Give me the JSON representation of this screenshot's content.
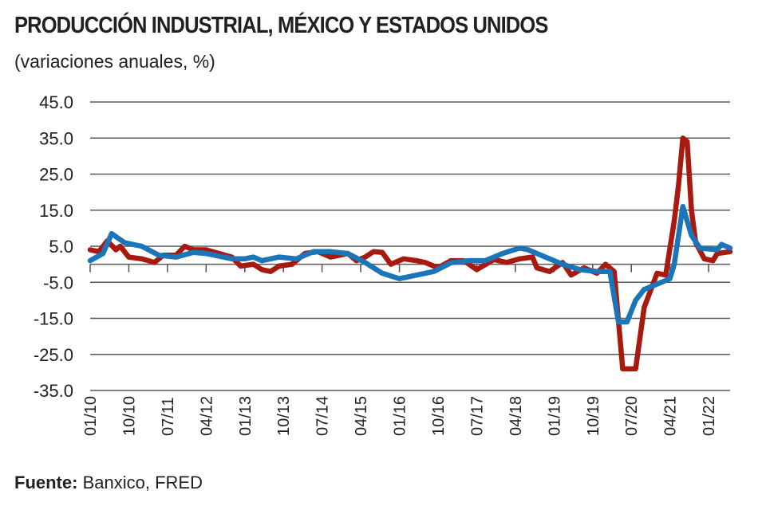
{
  "chart_data": {
    "type": "line",
    "title": "PRODUCCIÓN INDUSTRIAL, MÉXICO Y ESTADOS UNIDOS",
    "subtitle": "(variaciones anuales, %)",
    "xlabel": "",
    "ylabel": "",
    "ylim": [
      -35,
      45
    ],
    "xlim": [
      "2010-01",
      "2022-06"
    ],
    "grid": true,
    "yticks": [
      "45.0",
      "35.0",
      "25.0",
      "15.0",
      "5.0",
      "-5.0",
      "-15.0",
      "-25.0",
      "-35.0"
    ],
    "ytick_values": [
      45,
      35,
      25,
      15,
      5,
      -5,
      -15,
      -25,
      -35
    ],
    "xticks": [
      "01/10",
      "10/10",
      "07/11",
      "04/12",
      "01/13",
      "10/13",
      "07/14",
      "04/15",
      "01/16",
      "10/16",
      "07/17",
      "04/18",
      "01/19",
      "10/19",
      "07/20",
      "04/21",
      "01/22"
    ],
    "source_label": "Fuente:",
    "source_text": "Banxico, FRED",
    "series": [
      {
        "color": "#a8190f",
        "points": [
          [
            "2010-01",
            4
          ],
          [
            "2010-03",
            3.5
          ],
          [
            "2010-05",
            6.5
          ],
          [
            "2010-07",
            4
          ],
          [
            "2010-08",
            5
          ],
          [
            "2010-10",
            2
          ],
          [
            "2011-01",
            1.5
          ],
          [
            "2011-04",
            0.5
          ],
          [
            "2011-06",
            2.5
          ],
          [
            "2011-09",
            2.5
          ],
          [
            "2011-11",
            5
          ],
          [
            "2012-01",
            4
          ],
          [
            "2012-04",
            4
          ],
          [
            "2012-07",
            3
          ],
          [
            "2012-10",
            2
          ],
          [
            "2012-12",
            -0.5
          ],
          [
            "2013-03",
            0
          ],
          [
            "2013-05",
            -1.5
          ],
          [
            "2013-07",
            -2
          ],
          [
            "2013-09",
            -0.5
          ],
          [
            "2013-12",
            0
          ],
          [
            "2014-03",
            3
          ],
          [
            "2014-06",
            3.5
          ],
          [
            "2014-09",
            2
          ],
          [
            "2015-01",
            3
          ],
          [
            "2015-03",
            1
          ],
          [
            "2015-05",
            2
          ],
          [
            "2015-07",
            3.5
          ],
          [
            "2015-09",
            3.3
          ],
          [
            "2015-11",
            0
          ],
          [
            "2016-02",
            1.5
          ],
          [
            "2016-05",
            1
          ],
          [
            "2016-07",
            0.5
          ],
          [
            "2016-10",
            -1
          ],
          [
            "2017-01",
            1
          ],
          [
            "2017-04",
            1
          ],
          [
            "2017-07",
            -1.5
          ],
          [
            "2017-11",
            1.3
          ],
          [
            "2018-02",
            0.5
          ],
          [
            "2018-05",
            1.5
          ],
          [
            "2018-08",
            2
          ],
          [
            "2018-09",
            -1
          ],
          [
            "2018-12",
            -2
          ],
          [
            "2019-03",
            0.5
          ],
          [
            "2019-05",
            -3
          ],
          [
            "2019-08",
            -1
          ],
          [
            "2019-11",
            -2.5
          ],
          [
            "2020-01",
            0
          ],
          [
            "2020-03",
            -2
          ],
          [
            "2020-05",
            -29
          ],
          [
            "2020-08",
            -29
          ],
          [
            "2020-10",
            -12
          ],
          [
            "2021-01",
            -2.5
          ],
          [
            "2021-03",
            -3
          ],
          [
            "2021-05",
            12
          ],
          [
            "2021-06",
            22
          ],
          [
            "2021-07",
            35
          ],
          [
            "2021-08",
            34
          ],
          [
            "2021-09",
            15
          ],
          [
            "2021-10",
            6
          ],
          [
            "2021-12",
            1.5
          ],
          [
            "2022-02",
            1
          ],
          [
            "2022-03",
            3
          ],
          [
            "2022-06",
            3.5
          ]
        ]
      },
      {
        "color": "#1c75b9",
        "points": [
          [
            "2010-01",
            1
          ],
          [
            "2010-04",
            3
          ],
          [
            "2010-06",
            8.5
          ],
          [
            "2010-09",
            6
          ],
          [
            "2011-01",
            5
          ],
          [
            "2011-05",
            2.5
          ],
          [
            "2011-09",
            2
          ],
          [
            "2012-01",
            3.3
          ],
          [
            "2012-04",
            3
          ],
          [
            "2012-10",
            1.5
          ],
          [
            "2013-01",
            1.5
          ],
          [
            "2013-03",
            2
          ],
          [
            "2013-05",
            1
          ],
          [
            "2013-09",
            2
          ],
          [
            "2014-01",
            1.5
          ],
          [
            "2014-05",
            3.5
          ],
          [
            "2014-09",
            3.5
          ],
          [
            "2015-01",
            3
          ],
          [
            "2015-05",
            0.5
          ],
          [
            "2015-09",
            -2.5
          ],
          [
            "2016-01",
            -4
          ],
          [
            "2016-05",
            -3
          ],
          [
            "2016-09",
            -2
          ],
          [
            "2017-01",
            0.4
          ],
          [
            "2017-05",
            1
          ],
          [
            "2017-09",
            1
          ],
          [
            "2018-01",
            3
          ],
          [
            "2018-05",
            4.5
          ],
          [
            "2018-07",
            4
          ],
          [
            "2018-11",
            2
          ],
          [
            "2019-03",
            0
          ],
          [
            "2019-07",
            -1.5
          ],
          [
            "2019-11",
            -2
          ],
          [
            "2020-02",
            -2
          ],
          [
            "2020-04",
            -16
          ],
          [
            "2020-06",
            -16
          ],
          [
            "2020-08",
            -10
          ],
          [
            "2020-10",
            -7
          ],
          [
            "2021-02",
            -5
          ],
          [
            "2021-04",
            -4
          ],
          [
            "2021-05",
            0
          ],
          [
            "2021-07",
            16
          ],
          [
            "2021-09",
            8
          ],
          [
            "2021-11",
            4.5
          ],
          [
            "2022-03",
            4
          ],
          [
            "2022-04",
            5.5
          ],
          [
            "2022-06",
            4.5
          ]
        ]
      }
    ]
  }
}
